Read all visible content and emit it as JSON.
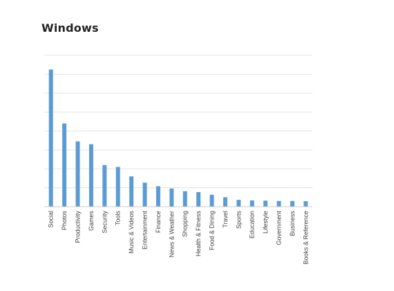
{
  "chart_data": {
    "type": "bar",
    "title": "Windows",
    "xlabel": "",
    "ylabel": "",
    "ylim": [
      0,
      8
    ],
    "grid": true,
    "categories": [
      "Social",
      "Photos",
      "Productivity",
      "Games",
      "Security",
      "Tools",
      "Music & Videos",
      "Entertainment",
      "Finance",
      "News & Weather",
      "Shopping",
      "Health & Fitness",
      "Food & Dining",
      "Travel",
      "Sports",
      "Education",
      "Lifestyle",
      "Government",
      "Business",
      "Books & Reference"
    ],
    "values": [
      7.25,
      4.4,
      3.45,
      3.3,
      2.2,
      2.1,
      1.6,
      1.27,
      1.08,
      0.96,
      0.82,
      0.77,
      0.63,
      0.5,
      0.36,
      0.33,
      0.32,
      0.3,
      0.3,
      0.29
    ],
    "colors": {
      "bar": "#5b9bd5",
      "grid": "#e3e3e3",
      "axis": "#c8c8c8"
    }
  }
}
